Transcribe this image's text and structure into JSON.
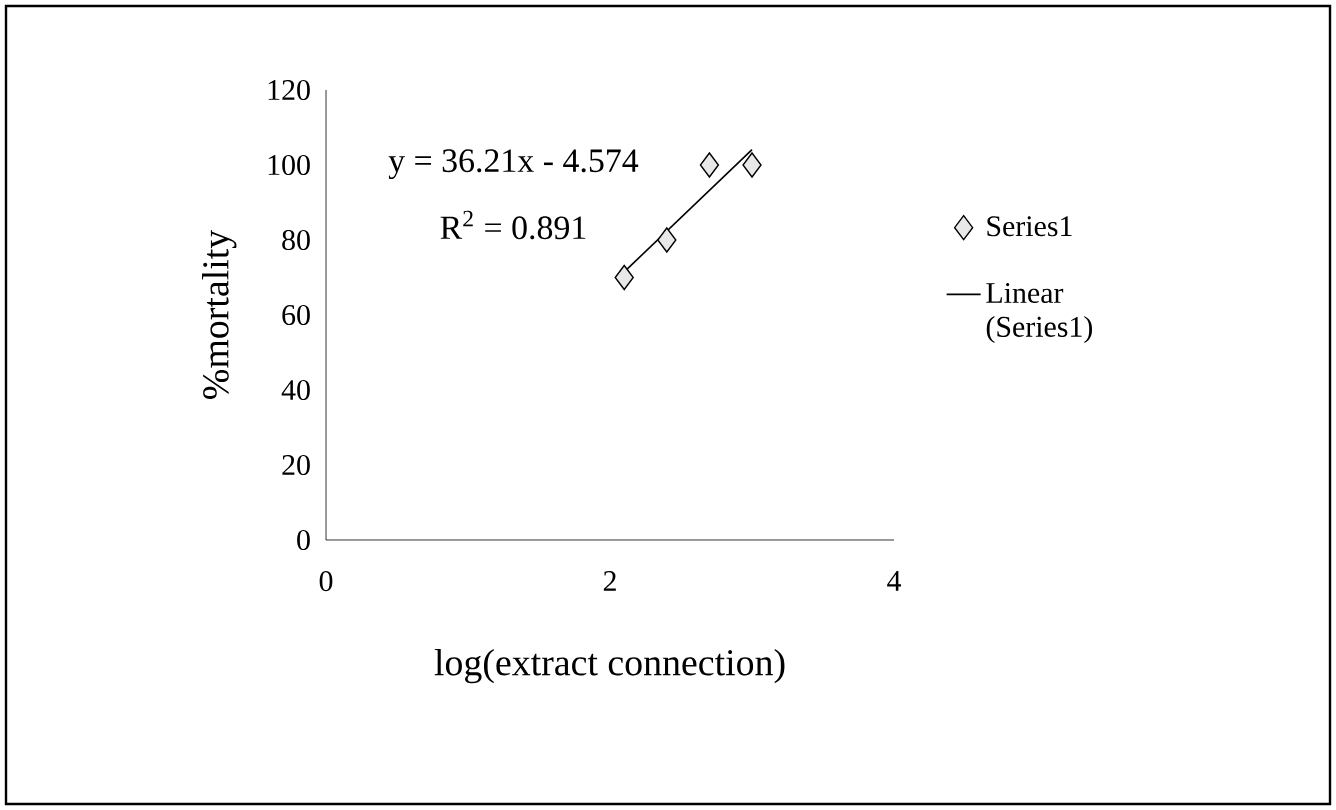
{
  "chart_data": {
    "type": "scatter",
    "xlabel": "log(extract connection)",
    "ylabel": "%mortality",
    "annotations": [
      "y = 36.21x - 4.574",
      "R$^{2}$ = 0.891"
    ],
    "xlim": [
      0,
      4
    ],
    "xticks": [
      0,
      2,
      4
    ],
    "ylim": [
      0,
      120
    ],
    "yticks": [
      0,
      20,
      40,
      60,
      80,
      100,
      120
    ],
    "legend": "right",
    "grid": false,
    "series": [
      {
        "name": "Series1",
        "marker": "diamond",
        "color": "#e8e8e8",
        "x": [
          2.1,
          2.4,
          2.7,
          3.0
        ],
        "values": [
          70,
          80,
          100,
          100
        ]
      },
      {
        "name": "Linear (Series1)",
        "type": "line",
        "color": "#000000",
        "x": [
          2.1,
          3.0
        ],
        "values": [
          71.5,
          104.1
        ]
      }
    ]
  }
}
